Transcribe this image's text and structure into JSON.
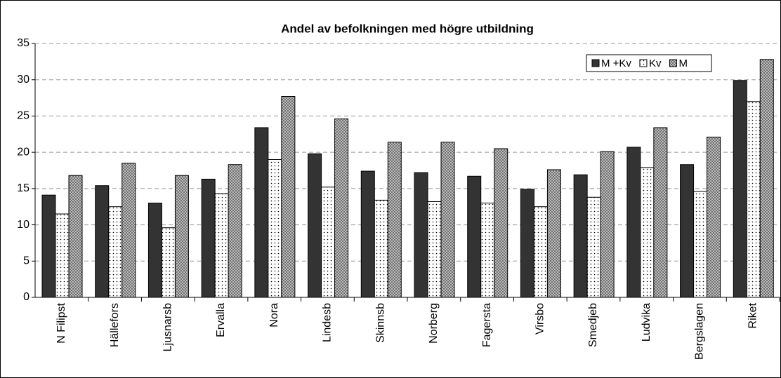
{
  "chart_data": {
    "type": "bar",
    "title": "Andel av befolkningen med högre utbildning",
    "categories": [
      "N Filipst",
      "Hällefors",
      "Ljusnarsb",
      "Ervalla",
      "Nora",
      "Lindesb",
      "Skinnsb",
      "Norberg",
      "Fagersta",
      "Virsbo",
      "Smedjeb",
      "Ludvika",
      "Bergslagen",
      "Riket"
    ],
    "series": [
      {
        "name": "M +Kv",
        "color": "#333333",
        "pattern": "solid",
        "values": [
          14.1,
          15.4,
          13.0,
          16.3,
          23.4,
          19.8,
          17.4,
          17.2,
          16.7,
          14.9,
          16.9,
          20.7,
          18.3,
          29.9
        ]
      },
      {
        "name": "Kv",
        "color": "#ffffff",
        "pattern": "dots",
        "values": [
          11.5,
          12.5,
          9.6,
          14.3,
          19.0,
          15.2,
          13.4,
          13.2,
          13.0,
          12.5,
          13.8,
          17.9,
          14.6,
          27.0
        ]
      },
      {
        "name": "M",
        "color": "#c8c8c8",
        "pattern": "crosshatch",
        "values": [
          16.8,
          18.5,
          16.8,
          18.3,
          27.7,
          24.6,
          21.4,
          21.4,
          20.5,
          17.6,
          20.1,
          23.4,
          22.1,
          32.8
        ]
      }
    ],
    "ylim": [
      0,
      35
    ],
    "yticks": [
      0,
      5,
      10,
      15,
      20,
      25,
      30,
      35
    ],
    "grid": true,
    "legend": "top-right"
  }
}
